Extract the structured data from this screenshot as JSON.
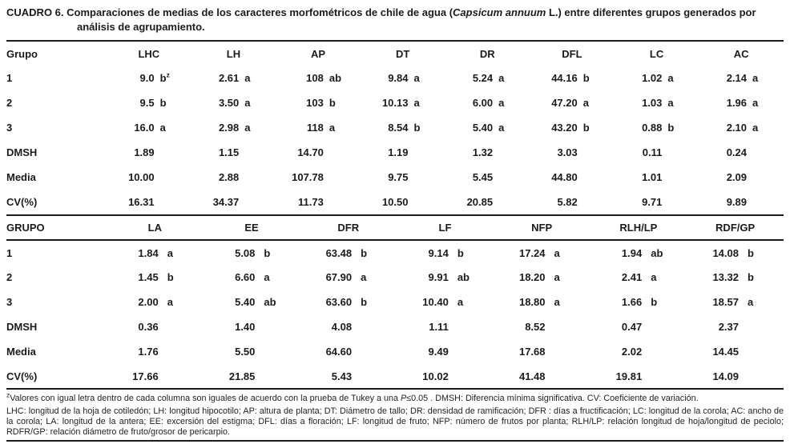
{
  "title": {
    "label": "CUADRO 6.",
    "pre": " Comparaciones de medias de los caracteres morfométricos de chile de agua (",
    "italic": "Capsicum annuum",
    "post": " L.) entre diferentes grupos generados por análisis de agrupamiento."
  },
  "tables": [
    {
      "headers": [
        "Grupo",
        "LHC",
        "LH",
        "AP",
        "DT",
        "DR",
        "DFL",
        "LC",
        "AC"
      ],
      "rows": [
        {
          "label": "1",
          "cells": [
            [
              "9.0",
              "b",
              "z"
            ],
            [
              "2.61",
              "a"
            ],
            [
              "108",
              "ab"
            ],
            [
              "9.84",
              "a"
            ],
            [
              "5.24",
              "a"
            ],
            [
              "44.16",
              "b"
            ],
            [
              "1.02",
              "a"
            ],
            [
              "2.14",
              "a"
            ]
          ]
        },
        {
          "label": "2",
          "cells": [
            [
              "9.5",
              "b"
            ],
            [
              "3.50",
              "a"
            ],
            [
              "103",
              "b"
            ],
            [
              "10.13",
              "a"
            ],
            [
              "6.00",
              "a"
            ],
            [
              "47.20",
              "a"
            ],
            [
              "1.03",
              "a"
            ],
            [
              "1.96",
              "a"
            ]
          ]
        },
        {
          "label": "3",
          "cells": [
            [
              "16.0",
              "a"
            ],
            [
              "2.98",
              "a"
            ],
            [
              "118",
              "a"
            ],
            [
              "8.54",
              "b"
            ],
            [
              "5.40",
              "a"
            ],
            [
              "43.20",
              "b"
            ],
            [
              "0.88",
              "b"
            ],
            [
              "2.10",
              "a"
            ]
          ]
        },
        {
          "label": "DMSH",
          "cells": [
            [
              "1.89",
              ""
            ],
            [
              "1.15",
              ""
            ],
            [
              "14.70",
              ""
            ],
            [
              "1.19",
              ""
            ],
            [
              "1.32",
              ""
            ],
            [
              "3.03",
              ""
            ],
            [
              "0.11",
              ""
            ],
            [
              "0.24",
              ""
            ]
          ]
        },
        {
          "label": "Media",
          "cells": [
            [
              "10.00",
              ""
            ],
            [
              "2.88",
              ""
            ],
            [
              "107.78",
              ""
            ],
            [
              "9.75",
              ""
            ],
            [
              "5.45",
              ""
            ],
            [
              "44.80",
              ""
            ],
            [
              "1.01",
              ""
            ],
            [
              "2.09",
              ""
            ]
          ]
        },
        {
          "label": "CV(%)",
          "cells": [
            [
              "16.31",
              ""
            ],
            [
              "34.37",
              ""
            ],
            [
              "11.73",
              ""
            ],
            [
              "10.50",
              ""
            ],
            [
              "20.85",
              ""
            ],
            [
              "5.82",
              ""
            ],
            [
              "9.71",
              ""
            ],
            [
              "9.89",
              ""
            ]
          ]
        }
      ]
    },
    {
      "headers": [
        "GRUPO",
        "LA",
        "EE",
        "DFR",
        "LF",
        "NFP",
        "RLH/LP",
        "RDF/GP"
      ],
      "rows": [
        {
          "label": "1",
          "cells": [
            [
              "1.84",
              "a"
            ],
            [
              "5.08",
              "b"
            ],
            [
              "63.48",
              "b"
            ],
            [
              "9.14",
              "b"
            ],
            [
              "17.24",
              "a"
            ],
            [
              "1.94",
              "ab"
            ],
            [
              "14.08",
              "b"
            ]
          ]
        },
        {
          "label": "2",
          "cells": [
            [
              "1.45",
              "b"
            ],
            [
              "6.60",
              "a"
            ],
            [
              "67.90",
              "a"
            ],
            [
              "9.91",
              "ab"
            ],
            [
              "18.20",
              "a"
            ],
            [
              "2.41",
              "a"
            ],
            [
              "13.32",
              "b"
            ]
          ]
        },
        {
          "label": "3",
          "cells": [
            [
              "2.00",
              "a"
            ],
            [
              "5.40",
              "ab"
            ],
            [
              "63.60",
              "b"
            ],
            [
              "10.40",
              "a"
            ],
            [
              "18.80",
              "a"
            ],
            [
              "1.66",
              "b"
            ],
            [
              "18.57",
              "a"
            ]
          ]
        },
        {
          "label": "DMSH",
          "cells": [
            [
              "0.36",
              ""
            ],
            [
              "1.40",
              ""
            ],
            [
              "4.08",
              ""
            ],
            [
              "1.11",
              ""
            ],
            [
              "8.52",
              ""
            ],
            [
              "0.47",
              ""
            ],
            [
              "2.37",
              ""
            ]
          ]
        },
        {
          "label": "Media",
          "cells": [
            [
              "1.76",
              ""
            ],
            [
              "5.50",
              ""
            ],
            [
              "64.60",
              ""
            ],
            [
              "9.49",
              ""
            ],
            [
              "17.68",
              ""
            ],
            [
              "2.02",
              ""
            ],
            [
              "14.45",
              ""
            ]
          ]
        },
        {
          "label": "CV(%)",
          "cells": [
            [
              "17.66",
              ""
            ],
            [
              "21.85",
              ""
            ],
            [
              "5.43",
              ""
            ],
            [
              "10.02",
              ""
            ],
            [
              "41.48",
              ""
            ],
            [
              "19.81",
              ""
            ],
            [
              "14.09",
              ""
            ]
          ]
        }
      ]
    }
  ],
  "footnotes": {
    "fn1_sup": "z",
    "fn1_pre": "Valores con igual letra dentro de cada columna son iguales de acuerdo con la prueba de Tukey a una ",
    "fn1_italic": "P",
    "fn1_post": "≤0.05 . DMSH: Diferencia mínima significativa.  CV: Coeficiente de variación.",
    "fn2": "LHC: longitud de la hoja de cotiledón; LH: longitud hipocotilo;  AP: altura de planta; DT: Diámetro de tallo; DR: densidad de ramificación;  DFR : días a fructificación;  LC: longitud de la corola;   AC: ancho de la corola;  LA: longitud de la antera;  EE: excersión del estigma;  DFL: días a floración;  LF: longitud de fruto;  NFP: número de frutos por planta;  RLH/LP: relación  longitud de hoja/longitud de peciolo;  RDFR/GP: relación diámetro de fruto/grosor de pericarpio."
  }
}
